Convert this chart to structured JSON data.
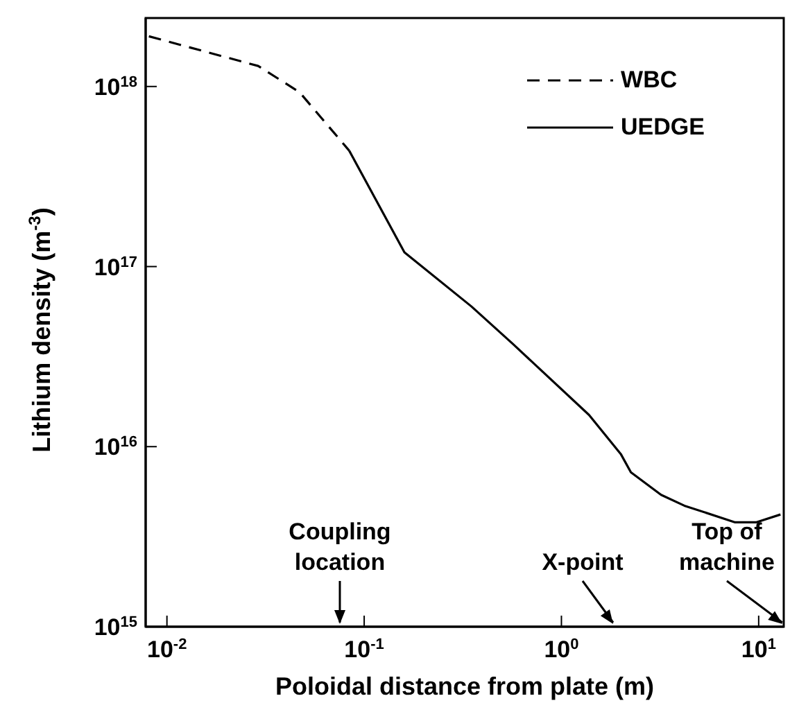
{
  "chart_data": {
    "type": "line",
    "xlabel": "Poloidal distance from plate (m)",
    "ylabel": "Lithium density (m$^{-3}$)",
    "log": "xy",
    "xlim": [
      0.0078,
      13.4
    ],
    "xticks": [
      {
        "value": 0.01,
        "label": "10$^{-2}$"
      },
      {
        "value": 0.1,
        "label": "10$^{-1}$"
      },
      {
        "value": 1,
        "label": "10$^{0}$"
      },
      {
        "value": 10,
        "label": "10$^{1}$"
      }
    ],
    "ylim": [
      1000000000000000.0,
      2.4e+18
    ],
    "yticks": [
      {
        "value": 1000000000000000.0,
        "label": "10$^{15}$"
      },
      {
        "value": 1e+16,
        "label": "10$^{16}$"
      },
      {
        "value": 1e+17,
        "label": "10$^{17}$"
      },
      {
        "value": 1e+18,
        "label": "10$^{18}$"
      }
    ],
    "legend": "top right",
    "marker": "none",
    "series": [
      {
        "name": "WBC",
        "color": "#000000",
        "line_style": "dashed",
        "x": [
          0.0081,
          0.029,
          0.047,
          0.084
        ],
        "values": [
          1.9e+18,
          1.3e+18,
          9.3e+17,
          4.4e+17
        ]
      },
      {
        "name": "UEDGE",
        "color": "#000000",
        "line_style": "solid",
        "x": [
          0.084,
          0.16,
          0.35,
          0.57,
          1.38,
          2.0,
          2.25,
          3.2,
          4.2,
          7.6,
          9.7,
          12.9
        ],
        "values": [
          4.4e+17,
          1.2e+17,
          6e+16,
          3.7e+16,
          1.5e+16,
          9100000000000000.0,
          7200000000000000.0,
          5400000000000000.0,
          4700000000000000.0,
          3800000000000000.0,
          3800000000000000.0,
          4200000000000000.0
        ]
      }
    ],
    "annotations": [
      "Coupling location",
      "X-point",
      "Top of machine"
    ]
  }
}
